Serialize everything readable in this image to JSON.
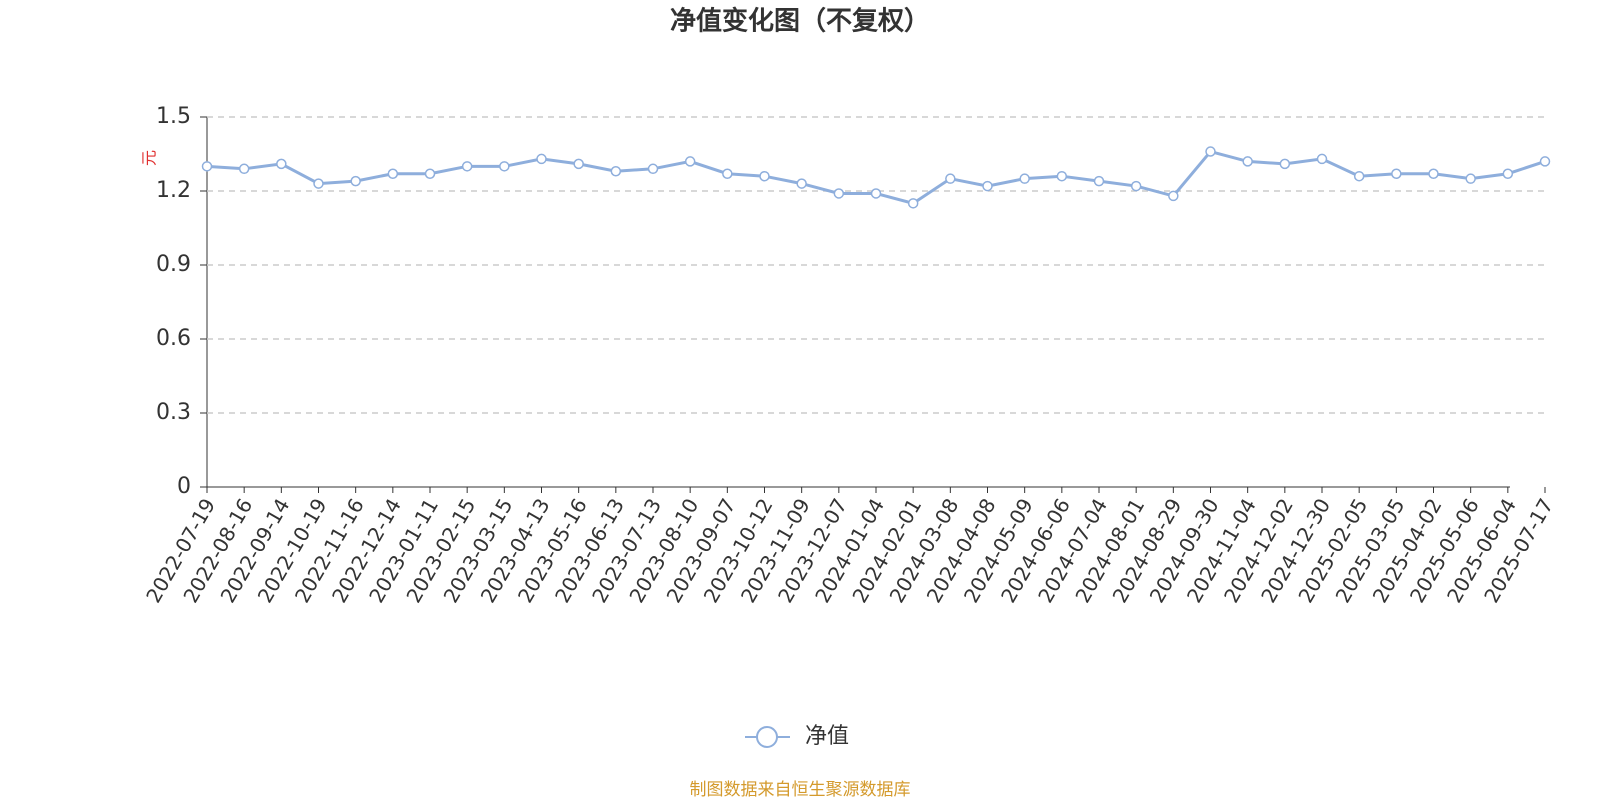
{
  "chart_data": {
    "type": "line",
    "title": "净值变化图（不复权）",
    "y_label": "元",
    "categories": [
      "2022-07-19",
      "2022-08-16",
      "2022-09-14",
      "2022-10-19",
      "2022-11-16",
      "2022-12-14",
      "2023-01-11",
      "2023-02-15",
      "2023-03-15",
      "2023-04-13",
      "2023-05-16",
      "2023-06-13",
      "2023-07-13",
      "2023-08-10",
      "2023-09-07",
      "2023-10-12",
      "2023-11-09",
      "2023-12-07",
      "2024-01-04",
      "2024-02-01",
      "2024-03-08",
      "2024-04-08",
      "2024-05-09",
      "2024-06-06",
      "2024-07-04",
      "2024-08-01",
      "2024-08-29",
      "2024-09-30",
      "2024-11-04",
      "2024-12-02",
      "2024-12-30",
      "2025-02-05",
      "2025-03-05",
      "2025-04-02",
      "2025-05-06",
      "2025-06-04",
      "2025-07-17"
    ],
    "series": [
      {
        "name": "净值",
        "color": "#8eaedc",
        "values": [
          1.3,
          1.29,
          1.31,
          1.23,
          1.24,
          1.27,
          1.27,
          1.3,
          1.3,
          1.33,
          1.31,
          1.28,
          1.29,
          1.32,
          1.27,
          1.26,
          1.23,
          1.19,
          1.19,
          1.15,
          1.25,
          1.22,
          1.25,
          1.26,
          1.24,
          1.22,
          1.18,
          1.36,
          1.32,
          1.31,
          1.33,
          1.26,
          1.27,
          1.27,
          1.25,
          1.27,
          1.32
        ]
      }
    ],
    "ylim": [
      0,
      1.5
    ],
    "yticks": [
      0,
      0.3,
      0.6,
      0.9,
      1.2,
      1.5
    ],
    "grid": true,
    "legend": "bottom",
    "source": "制图数据来自恒生聚源数据库"
  }
}
